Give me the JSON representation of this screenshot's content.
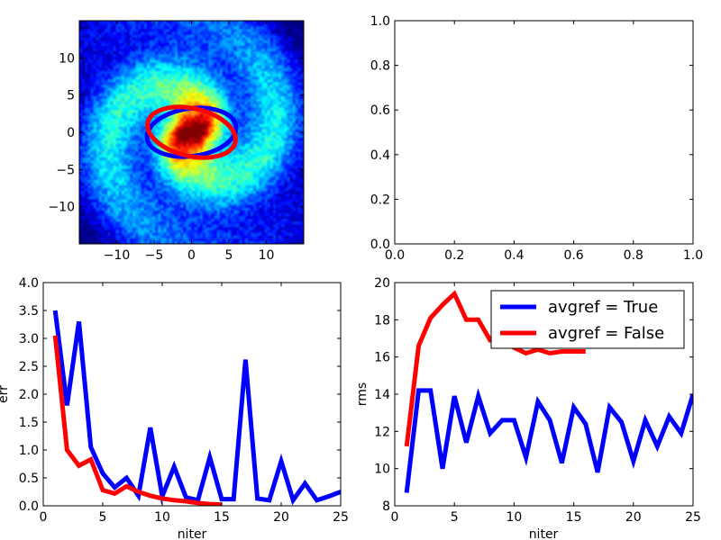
{
  "colors": {
    "blue": "#0000ff",
    "red": "#ff0000",
    "axis": "#000000"
  },
  "chart_data": [
    {
      "type": "heatmap",
      "title": "",
      "xlim": [
        -15,
        15
      ],
      "ylim": [
        -15,
        15
      ],
      "xticks": [
        -10,
        -5,
        0,
        5,
        10
      ],
      "yticks": [
        -10,
        -5,
        0,
        5,
        10
      ],
      "xtick_labels": [
        "−10",
        "−5",
        "0",
        "5",
        "10"
      ],
      "ytick_labels": [
        "−10",
        "−5",
        "0",
        "5",
        "10"
      ],
      "colormap": "jet",
      "ellipses": [
        {
          "name": "blue-ellipse",
          "color": "#0000ff",
          "cx": 0,
          "cy": 0,
          "a": 6,
          "b": 3.2,
          "angle_deg": 8
        },
        {
          "name": "red-ellipse",
          "color": "#ff0000",
          "cx": 0,
          "cy": 0,
          "a": 6,
          "b": 3.2,
          "angle_deg": -13
        }
      ]
    },
    {
      "type": "line",
      "title": "",
      "xlim": [
        0,
        1
      ],
      "ylim": [
        0,
        1
      ],
      "xticks": [
        0,
        0.2,
        0.4,
        0.6,
        0.8,
        1
      ],
      "yticks": [
        0,
        0.2,
        0.4,
        0.6,
        0.8,
        1
      ],
      "xtick_labels": [
        "0.0",
        "0.2",
        "0.4",
        "0.6",
        "0.8",
        "1.0"
      ],
      "ytick_labels": [
        "0.0",
        "0.2",
        "0.4",
        "0.6",
        "0.8",
        "1.0"
      ],
      "series": []
    },
    {
      "type": "line",
      "xlabel": "niter",
      "ylabel": "err",
      "xlim": [
        0,
        25
      ],
      "ylim": [
        0,
        4
      ],
      "xticks": [
        0,
        5,
        10,
        15,
        20,
        25
      ],
      "yticks": [
        0,
        0.5,
        1,
        1.5,
        2,
        2.5,
        3,
        3.5,
        4
      ],
      "xtick_labels": [
        "0",
        "5",
        "10",
        "15",
        "20",
        "25"
      ],
      "ytick_labels": [
        "0.0",
        "0.5",
        "1.0",
        "1.5",
        "2.0",
        "2.5",
        "3.0",
        "3.5",
        "4.0"
      ],
      "series": [
        {
          "name": "avgref = True",
          "color": "#0000ff",
          "x": [
            1,
            2,
            3,
            4,
            5,
            6,
            7,
            8,
            9,
            10,
            11,
            12,
            13,
            14,
            15,
            16,
            17,
            18,
            19,
            20,
            21,
            22,
            23,
            24,
            25
          ],
          "y": [
            3.5,
            1.8,
            3.3,
            1.05,
            0.58,
            0.33,
            0.5,
            0.18,
            1.4,
            0.17,
            0.7,
            0.15,
            0.1,
            0.87,
            0.12,
            0.12,
            2.62,
            0.13,
            0.1,
            0.8,
            0.1,
            0.4,
            0.1,
            0.17,
            0.25
          ]
        },
        {
          "name": "avgref = False",
          "color": "#ff0000",
          "x": [
            1,
            2,
            3,
            4,
            5,
            6,
            7,
            8,
            9,
            10,
            11,
            12,
            13,
            14,
            15
          ],
          "y": [
            3.05,
            1.0,
            0.72,
            0.83,
            0.28,
            0.22,
            0.35,
            0.25,
            0.18,
            0.13,
            0.1,
            0.08,
            0.05,
            0.03,
            0.02
          ]
        }
      ]
    },
    {
      "type": "line",
      "xlabel": "niter",
      "ylabel": "rms",
      "xlim": [
        0,
        25
      ],
      "ylim": [
        8,
        20
      ],
      "xticks": [
        0,
        5,
        10,
        15,
        20,
        25
      ],
      "yticks": [
        8,
        10,
        12,
        14,
        16,
        18,
        20
      ],
      "xtick_labels": [
        "0",
        "5",
        "10",
        "15",
        "20",
        "25"
      ],
      "ytick_labels": [
        "8",
        "10",
        "12",
        "14",
        "16",
        "18",
        "20"
      ],
      "legend": {
        "placement": "top-right",
        "entries": [
          "avgref = True",
          "avgref = False"
        ]
      },
      "series": [
        {
          "name": "avgref = True",
          "color": "#0000ff",
          "x": [
            1,
            2,
            3,
            4,
            5,
            6,
            7,
            8,
            9,
            10,
            11,
            12,
            13,
            14,
            15,
            16,
            17,
            18,
            19,
            20,
            21,
            22,
            23,
            24,
            25
          ],
          "y": [
            8.7,
            14.2,
            14.2,
            10.0,
            13.9,
            11.4,
            13.9,
            11.9,
            12.6,
            12.6,
            10.6,
            13.6,
            12.6,
            10.3,
            13.3,
            12.4,
            9.8,
            13.3,
            12.5,
            10.4,
            12.6,
            11.2,
            12.8,
            11.9,
            14.0
          ]
        },
        {
          "name": "avgref = False",
          "color": "#ff0000",
          "x": [
            1,
            2,
            3,
            4,
            5,
            6,
            7,
            8,
            9,
            10,
            11,
            12,
            13,
            14,
            15,
            16
          ],
          "y": [
            11.2,
            16.6,
            18.1,
            18.8,
            19.4,
            18.0,
            18.0,
            16.9,
            16.9,
            16.5,
            16.2,
            16.4,
            16.2,
            16.3,
            16.3,
            16.3
          ]
        }
      ]
    }
  ]
}
